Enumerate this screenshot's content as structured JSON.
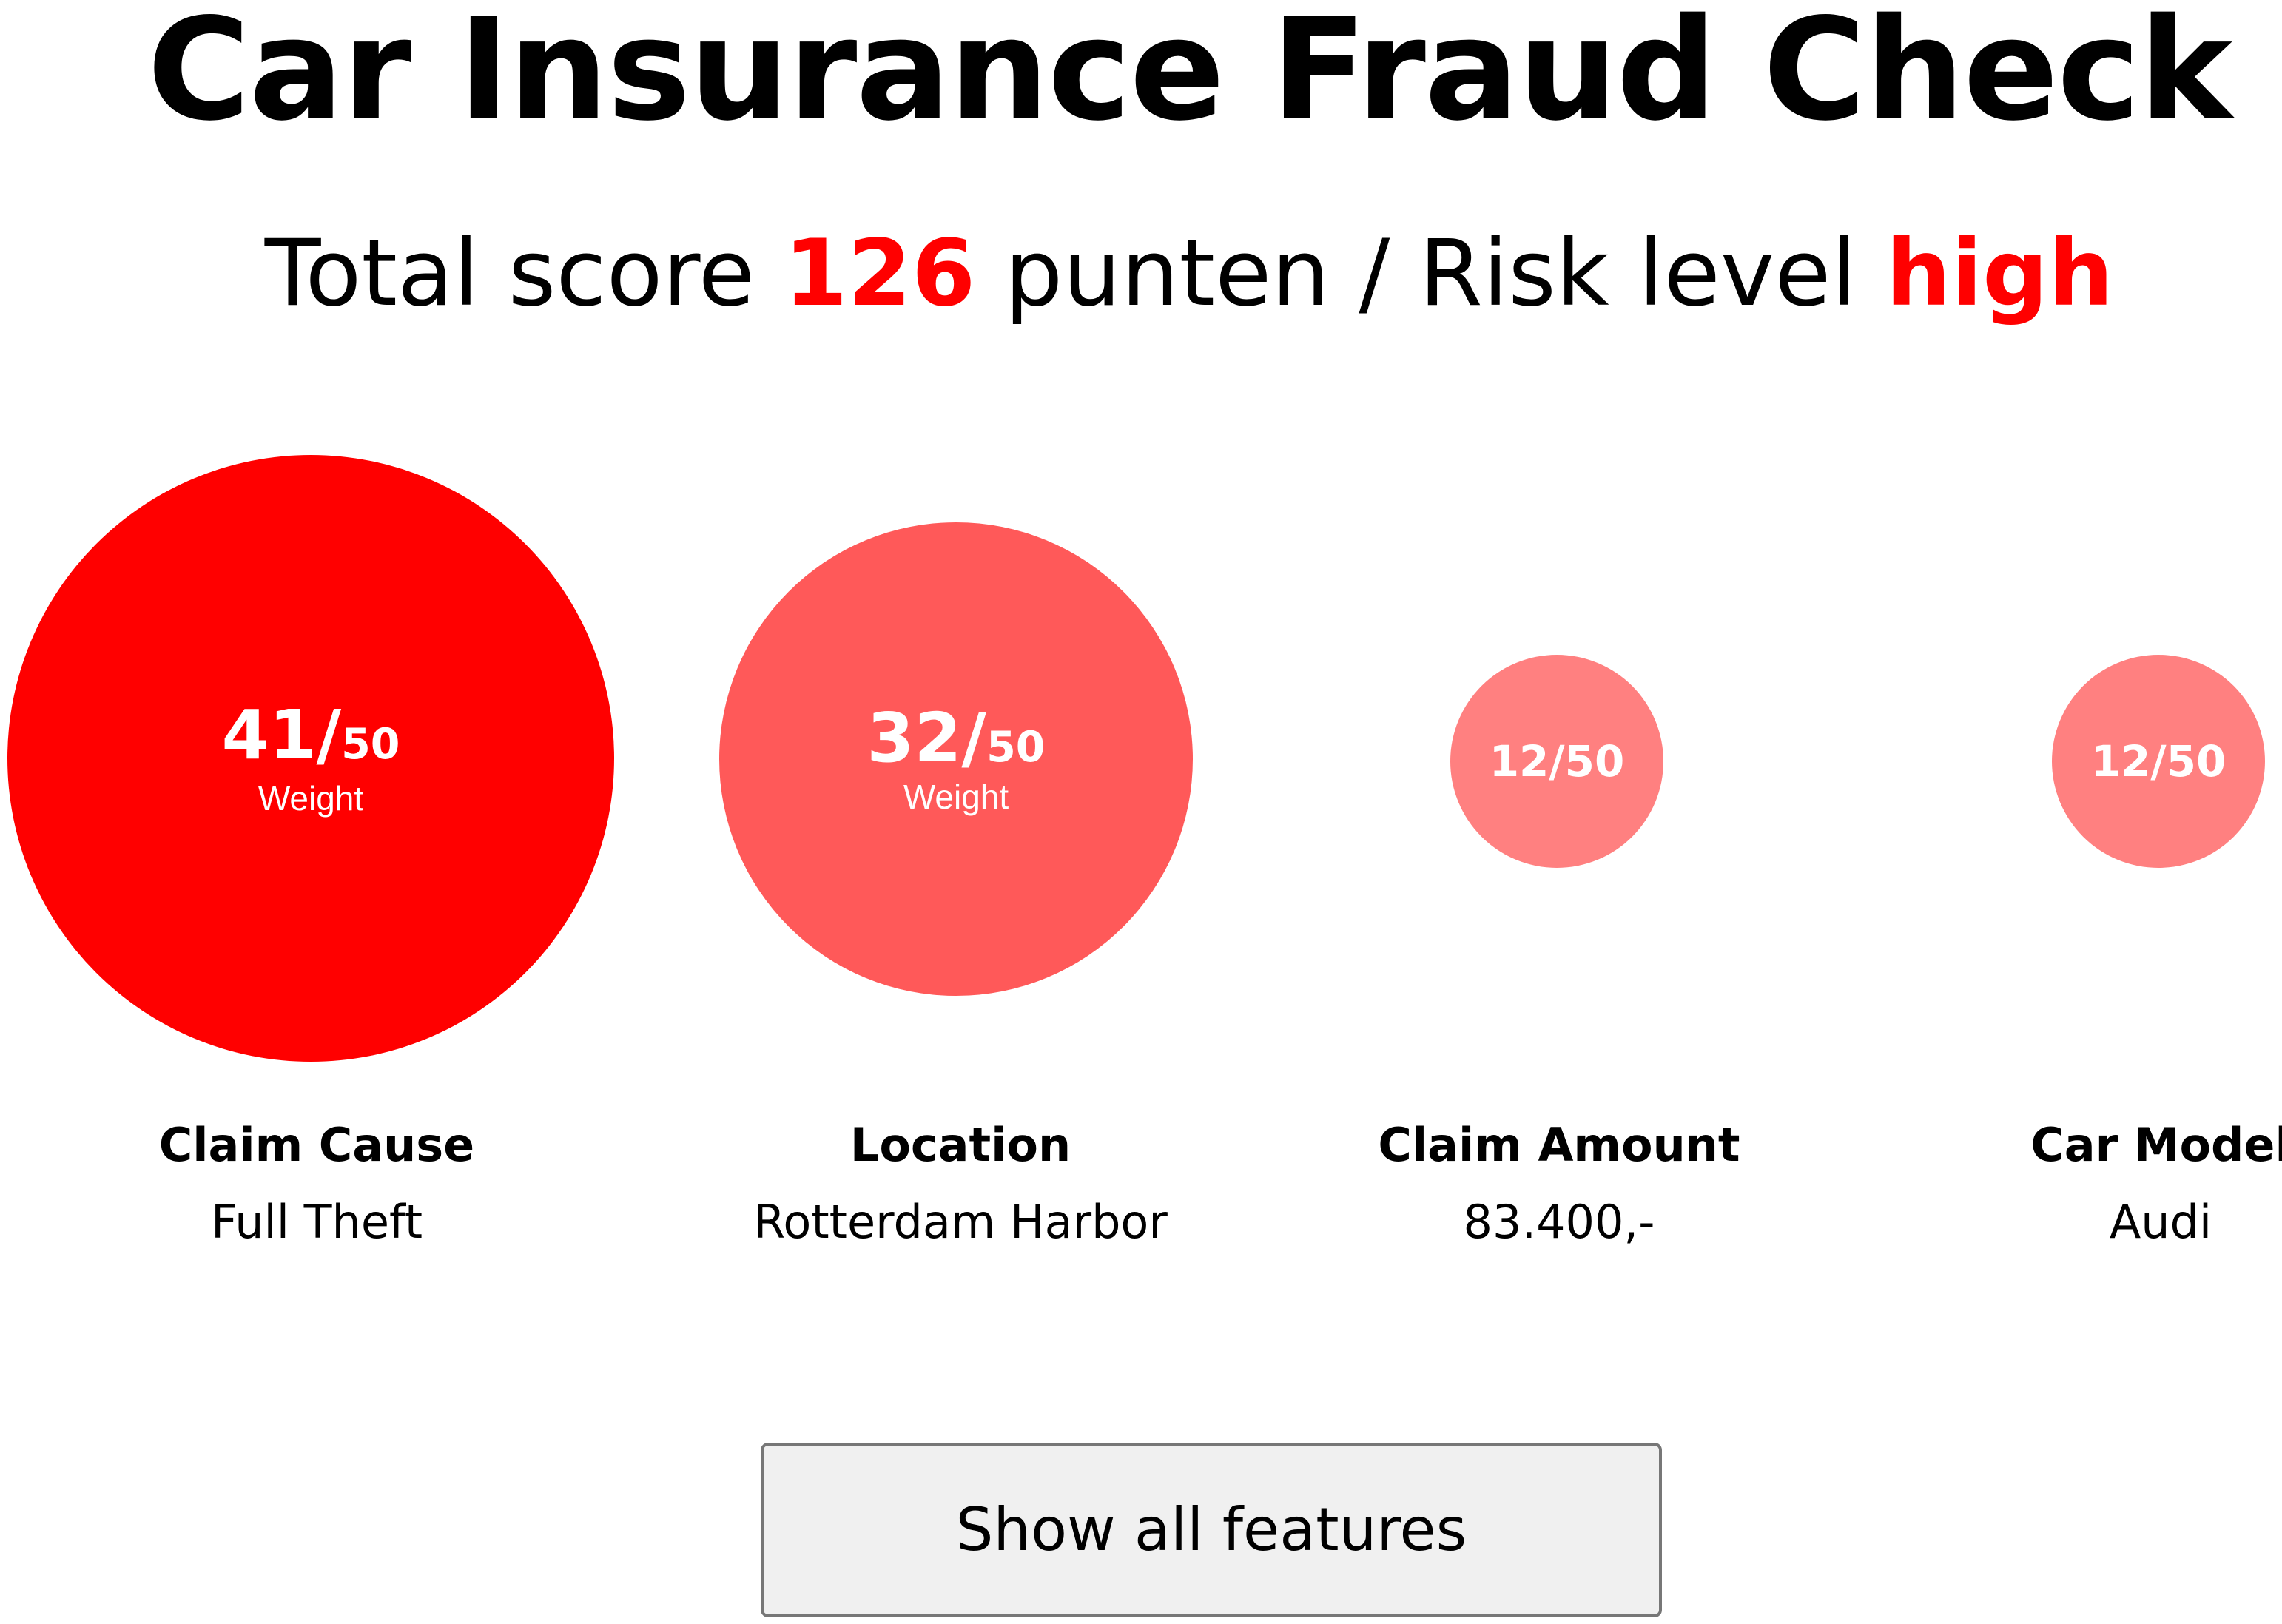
{
  "header": {
    "title": "Car Insurance Fraud Check",
    "summary": {
      "prefix": "Total score ",
      "score": "126",
      "middle": " punten / Risk level ",
      "risk_level": "high"
    }
  },
  "colors": {
    "accent": "#ff0000",
    "high_weight": "#ff0000",
    "medium_weight": "#ff5959",
    "low_weight": "#ff8080"
  },
  "features": [
    {
      "name": "Claim Cause",
      "value": "Full Theft",
      "score": "41/",
      "max": "50",
      "weight_label": "Weight"
    },
    {
      "name": "Location",
      "value": "Rotterdam Harbor",
      "score": "32/",
      "max": "50",
      "weight_label": "Weight"
    },
    {
      "name": "Claim Amount",
      "value": "83.400,-",
      "score_text": "12/50"
    },
    {
      "name": "Car Model",
      "value": "Audi",
      "score_text": "12/50"
    }
  ],
  "actions": {
    "show_all_label": "Show all features"
  }
}
